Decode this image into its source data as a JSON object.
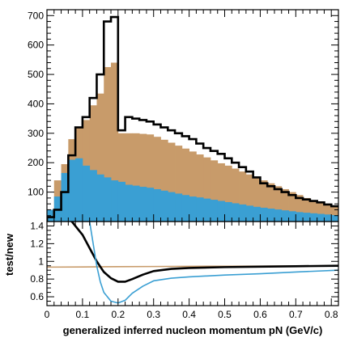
{
  "chart_data": [
    {
      "type": "bar",
      "panel": "top",
      "xlabel": "",
      "ylabel": "",
      "xlim": [
        0,
        0.82
      ],
      "ylim": [
        0,
        720
      ],
      "bin_width": 0.02,
      "x_edges_start": 0.0,
      "yticks": [
        100,
        200,
        300,
        400,
        500,
        600,
        700
      ],
      "series": [
        {
          "style": "filled",
          "color": "#3a9fd3",
          "values": [
            40,
            85,
            165,
            210,
            215,
            190,
            175,
            160,
            150,
            140,
            135,
            125,
            122,
            118,
            115,
            110,
            105,
            100,
            95,
            90,
            85,
            82,
            78,
            74,
            70,
            66,
            62,
            58,
            54,
            50,
            47,
            44,
            41,
            38,
            35,
            32,
            30,
            28,
            26,
            24,
            22
          ]
        },
        {
          "style": "filled",
          "color": "#c89b6a",
          "values": [
            40,
            140,
            195,
            280,
            320,
            345,
            395,
            435,
            525,
            540,
            300,
            300,
            300,
            298,
            296,
            288,
            278,
            268,
            258,
            248,
            238,
            228,
            218,
            208,
            198,
            190,
            180,
            170,
            160,
            150,
            140,
            130,
            120,
            110,
            100,
            90,
            80,
            72,
            64,
            58,
            52
          ]
        },
        {
          "style": "outline",
          "color": "#000000",
          "values": [
            15,
            40,
            100,
            225,
            320,
            355,
            420,
            500,
            680,
            695,
            310,
            355,
            350,
            345,
            340,
            330,
            320,
            310,
            300,
            290,
            280,
            265,
            250,
            240,
            230,
            215,
            200,
            185,
            170,
            150,
            130,
            120,
            110,
            100,
            90,
            80,
            75,
            70,
            65,
            58,
            52
          ]
        }
      ]
    },
    {
      "type": "line",
      "panel": "bottom",
      "xlabel": "generalized inferred nucleon momentum pN (GeV/c)",
      "ylabel": "test/new",
      "xlim": [
        0,
        0.82
      ],
      "ylim": [
        0.5,
        1.45
      ],
      "yticks": [
        0.6,
        0.8,
        1,
        1.2,
        1.4
      ],
      "yticklabels": [
        "0.6",
        "0.8",
        "1",
        "1.2",
        "1.4"
      ],
      "xticks": [
        0,
        0.1,
        0.2,
        0.3,
        0.4,
        0.5,
        0.6,
        0.7,
        0.8
      ],
      "xticklabels": [
        "0",
        "0.1",
        "0.2",
        "0.3",
        "0.4",
        "0.5",
        "0.6",
        "0.7",
        "0.8"
      ],
      "series": [
        {
          "color": "#000000",
          "x": [
            0.07,
            0.1,
            0.12,
            0.14,
            0.16,
            0.18,
            0.2,
            0.22,
            0.24,
            0.27,
            0.3,
            0.35,
            0.4,
            0.5,
            0.6,
            0.7,
            0.82
          ],
          "y": [
            1.45,
            1.3,
            1.15,
            1.0,
            0.88,
            0.81,
            0.77,
            0.77,
            0.8,
            0.85,
            0.89,
            0.915,
            0.925,
            0.935,
            0.94,
            0.945,
            0.95
          ]
        },
        {
          "color": "#3a9fd3",
          "x": [
            0.12,
            0.13,
            0.14,
            0.15,
            0.16,
            0.18,
            0.2,
            0.22,
            0.24,
            0.27,
            0.3,
            0.35,
            0.4,
            0.5,
            0.6,
            0.7,
            0.82
          ],
          "y": [
            1.45,
            1.2,
            0.95,
            0.77,
            0.65,
            0.55,
            0.53,
            0.56,
            0.64,
            0.72,
            0.78,
            0.81,
            0.825,
            0.845,
            0.86,
            0.88,
            0.9
          ]
        },
        {
          "color": "#c89b6a",
          "x": [
            0.0,
            0.1,
            0.2,
            0.3,
            0.4,
            0.5,
            0.6,
            0.7,
            0.82
          ],
          "y": [
            0.935,
            0.937,
            0.94,
            0.942,
            0.944,
            0.945,
            0.946,
            0.947,
            0.948
          ]
        }
      ]
    }
  ]
}
